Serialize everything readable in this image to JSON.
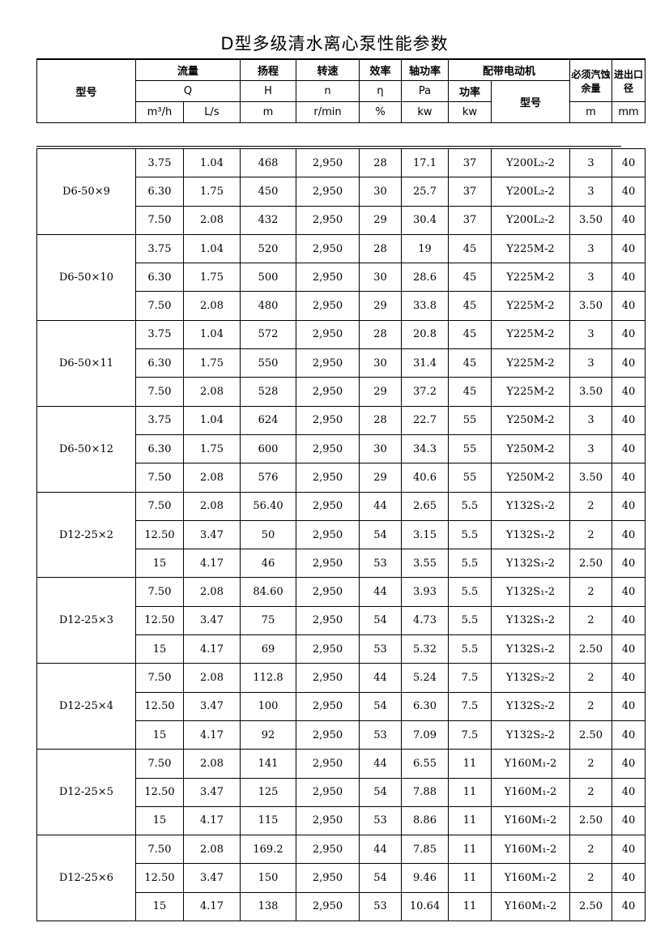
{
  "title": "D型多级清水离心泵性能参数",
  "header": {
    "model": "型号",
    "flow": "流量",
    "head": "扬程",
    "speed": "转速",
    "eff": "效率",
    "shaft_power": "轴功率",
    "motor": "配带电动机",
    "npsh": "必须汽蚀余量",
    "port": "进出口径",
    "Q": "Q",
    "H": "H",
    "n": "n",
    "eta": "η",
    "Pa": "Pa",
    "motor_power": "功率",
    "motor_model": "型号",
    "u_m3h": "m³/h",
    "u_ls": "L/s",
    "u_m": "m",
    "u_rmin": "r/min",
    "u_pct": "%",
    "u_kw": "kw",
    "u_kw2": "kw",
    "u_npsh": "m",
    "u_mm": "mm"
  },
  "groups": [
    {
      "model": "D6-50×9",
      "rows": [
        [
          "3.75",
          "1.04",
          "468",
          "2,950",
          "28",
          "17.1",
          "37",
          "Y200L₂-2",
          "3",
          "40"
        ],
        [
          "6.30",
          "1.75",
          "450",
          "2,950",
          "30",
          "25.7",
          "37",
          "Y200L₂-2",
          "3",
          "40"
        ],
        [
          "7.50",
          "2.08",
          "432",
          "2,950",
          "29",
          "30.4",
          "37",
          "Y200L₂-2",
          "3.50",
          "40"
        ]
      ]
    },
    {
      "model": "D6-50×10",
      "rows": [
        [
          "3.75",
          "1.04",
          "520",
          "2,950",
          "28",
          "19",
          "45",
          "Y225M-2",
          "3",
          "40"
        ],
        [
          "6.30",
          "1.75",
          "500",
          "2,950",
          "30",
          "28.6",
          "45",
          "Y225M-2",
          "3",
          "40"
        ],
        [
          "7.50",
          "2.08",
          "480",
          "2,950",
          "29",
          "33.8",
          "45",
          "Y225M-2",
          "3.50",
          "40"
        ]
      ]
    },
    {
      "model": "D6-50×11",
      "rows": [
        [
          "3.75",
          "1.04",
          "572",
          "2,950",
          "28",
          "20.8",
          "45",
          "Y225M-2",
          "3",
          "40"
        ],
        [
          "6.30",
          "1.75",
          "550",
          "2,950",
          "30",
          "31.4",
          "45",
          "Y225M-2",
          "3",
          "40"
        ],
        [
          "7.50",
          "2.08",
          "528",
          "2,950",
          "29",
          "37.2",
          "45",
          "Y225M-2",
          "3.50",
          "40"
        ]
      ]
    },
    {
      "model": "D6-50×12",
      "rows": [
        [
          "3.75",
          "1.04",
          "624",
          "2,950",
          "28",
          "22.7",
          "55",
          "Y250M-2",
          "3",
          "40"
        ],
        [
          "6.30",
          "1.75",
          "600",
          "2,950",
          "30",
          "34.3",
          "55",
          "Y250M-2",
          "3",
          "40"
        ],
        [
          "7.50",
          "2.08",
          "576",
          "2,950",
          "29",
          "40.6",
          "55",
          "Y250M-2",
          "3.50",
          "40"
        ]
      ]
    },
    {
      "model": "D12-25×2",
      "rows": [
        [
          "7.50",
          "2.08",
          "56.40",
          "2,950",
          "44",
          "2.65",
          "5.5",
          "Y132S₁-2",
          "2",
          "40"
        ],
        [
          "12.50",
          "3.47",
          "50",
          "2,950",
          "54",
          "3.15",
          "5.5",
          "Y132S₁-2",
          "2",
          "40"
        ],
        [
          "15",
          "4.17",
          "46",
          "2,950",
          "53",
          "3.55",
          "5.5",
          "Y132S₁-2",
          "2.50",
          "40"
        ]
      ]
    },
    {
      "model": "D12-25×3",
      "rows": [
        [
          "7.50",
          "2.08",
          "84.60",
          "2,950",
          "44",
          "3.93",
          "5.5",
          "Y132S₁-2",
          "2",
          "40"
        ],
        [
          "12.50",
          "3.47",
          "75",
          "2,950",
          "54",
          "4.73",
          "5.5",
          "Y132S₁-2",
          "2",
          "40"
        ],
        [
          "15",
          "4.17",
          "69",
          "2,950",
          "53",
          "5.32",
          "5.5",
          "Y132S₁-2",
          "2.50",
          "40"
        ]
      ]
    },
    {
      "model": "D12-25×4",
      "rows": [
        [
          "7.50",
          "2.08",
          "112.8",
          "2,950",
          "44",
          "5.24",
          "7.5",
          "Y132S₂-2",
          "2",
          "40"
        ],
        [
          "12.50",
          "3.47",
          "100",
          "2,950",
          "54",
          "6.30",
          "7.5",
          "Y132S₂-2",
          "2",
          "40"
        ],
        [
          "15",
          "4.17",
          "92",
          "2,950",
          "53",
          "7.09",
          "7.5",
          "Y132S₂-2",
          "2.50",
          "40"
        ]
      ]
    },
    {
      "model": "D12-25×5",
      "rows": [
        [
          "7.50",
          "2.08",
          "141",
          "2,950",
          "44",
          "6.55",
          "11",
          "Y160M₁-2",
          "2",
          "40"
        ],
        [
          "12.50",
          "3.47",
          "125",
          "2,950",
          "54",
          "7.88",
          "11",
          "Y160M₁-2",
          "2",
          "40"
        ],
        [
          "15",
          "4.17",
          "115",
          "2,950",
          "53",
          "8.86",
          "11",
          "Y160M₁-2",
          "2.50",
          "40"
        ]
      ]
    },
    {
      "model": "D12-25×6",
      "rows": [
        [
          "7.50",
          "2.08",
          "169.2",
          "2,950",
          "44",
          "7.85",
          "11",
          "Y160M₁-2",
          "2",
          "40"
        ],
        [
          "12.50",
          "3.47",
          "150",
          "2,950",
          "54",
          "9.46",
          "11",
          "Y160M₁-2",
          "2",
          "40"
        ],
        [
          "15",
          "4.17",
          "138",
          "2,950",
          "53",
          "10.64",
          "11",
          "Y160M₁-2",
          "2.50",
          "40"
        ]
      ]
    }
  ]
}
